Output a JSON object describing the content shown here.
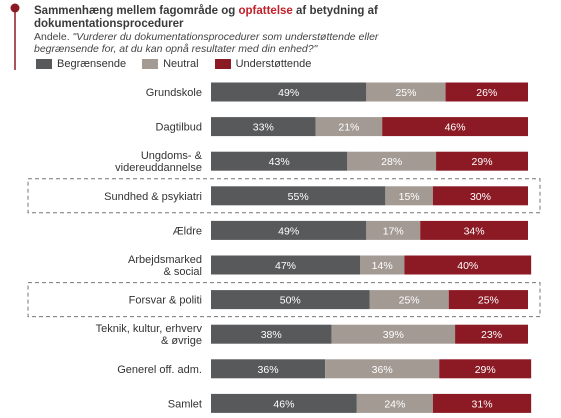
{
  "header": {
    "title_pre": "Sammenhæng mellem fagområde og ",
    "title_highlight": "opfattelse",
    "title_post": " af betydning af",
    "title_line2": "dokumentationsprocedurer",
    "subtitle_pre": "Andele. ",
    "subtitle_line1": "\"Vurderer du dokumentationsprocedurer som understøttende eller",
    "subtitle_line2": "begrænsende for, at du kan opnå resultater med din enhed?\""
  },
  "colors": {
    "begraensende": "#58595b",
    "neutral": "#a39a94",
    "understoettende": "#8c1a24",
    "highlight": "#c0202a"
  },
  "chart_data": {
    "type": "bar",
    "orientation": "horizontal",
    "stacked": true,
    "legend_position": "top-left",
    "categories": [
      [
        "Grundskole"
      ],
      [
        "Dagtilbud"
      ],
      [
        "Ungdoms- &",
        "videreuddannelse"
      ],
      [
        "Sundhed & psykiatri"
      ],
      [
        "Ældre"
      ],
      [
        "Arbejdsmarked",
        "& social"
      ],
      [
        "Forsvar & politi"
      ],
      [
        "Teknik, kultur, erhverv",
        "& øvrige"
      ],
      [
        "Generel off. adm."
      ],
      [
        "Samlet"
      ]
    ],
    "highlighted_categories": [
      "Sundhed & psykiatri",
      "Forsvar & politi"
    ],
    "series": [
      {
        "name": "Begrænsende",
        "values": [
          49,
          33,
          43,
          55,
          49,
          47,
          50,
          38,
          36,
          46
        ]
      },
      {
        "name": "Neutral",
        "values": [
          25,
          21,
          28,
          15,
          17,
          14,
          25,
          39,
          36,
          24
        ]
      },
      {
        "name": "Understøttende",
        "values": [
          26,
          46,
          29,
          30,
          34,
          40,
          25,
          23,
          29,
          31
        ]
      }
    ],
    "value_suffix": "%",
    "xlim": [
      0,
      100
    ]
  }
}
